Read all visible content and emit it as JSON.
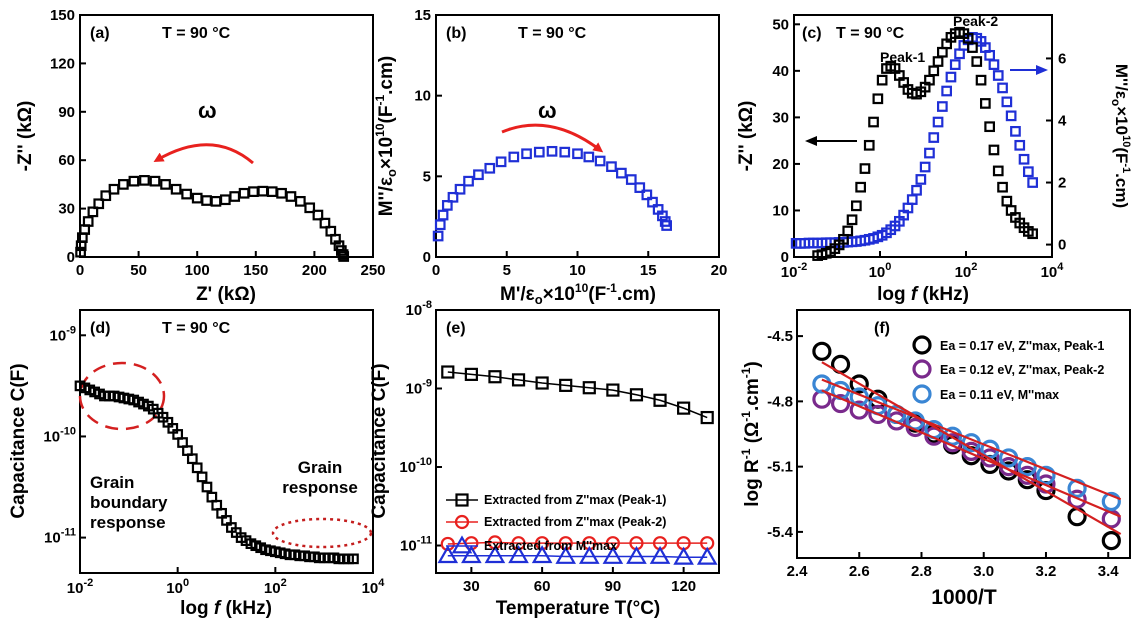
{
  "chart_data": [
    {
      "panel": "(a)",
      "type": "scatter",
      "annotation": "T = 90 °C",
      "xlabel": "Z' (kΩ)",
      "ylabel": "-Z'' (kΩ)",
      "xlim": [
        0,
        250
      ],
      "ylim": [
        0,
        150
      ],
      "xticks": [
        "0",
        "50",
        "100",
        "150",
        "200",
        "250"
      ],
      "yticks": [
        "0",
        "30",
        "60",
        "90",
        "120",
        "150"
      ],
      "arrow_label": "ω",
      "marker_color": "#000000",
      "x": [
        0.5,
        1,
        2,
        4,
        7,
        11,
        16,
        22,
        29,
        37,
        46,
        55,
        64,
        73,
        82,
        91,
        100,
        108,
        116,
        124,
        132,
        140,
        148,
        156,
        164,
        172,
        180,
        188,
        196,
        203,
        209,
        214,
        218,
        221,
        223,
        224.5,
        225
      ],
      "y": [
        3,
        7,
        12,
        17,
        22,
        28,
        33,
        38,
        42,
        45,
        47,
        47.5,
        47,
        45,
        42,
        39,
        36.5,
        35,
        34.5,
        35.5,
        37.5,
        39.5,
        40.5,
        40.8,
        40.5,
        39.5,
        37.5,
        34.5,
        30.5,
        26,
        21,
        16,
        11,
        7,
        4,
        1.5,
        0.3
      ]
    },
    {
      "panel": "(b)",
      "type": "scatter",
      "annotation": "T = 90 °C",
      "xlabel": "M'/εo×10¹⁰(F⁻¹.cm)",
      "ylabel": "M''/εo×10¹⁰(F⁻¹.cm)",
      "xlim": [
        0,
        20
      ],
      "ylim": [
        0,
        15
      ],
      "xticks": [
        "0",
        "5",
        "10",
        "15",
        "20"
      ],
      "yticks": [
        "0",
        "5",
        "10",
        "15"
      ],
      "arrow_label": "ω",
      "marker_color": "#1f2fd6",
      "x": [
        0.15,
        0.3,
        0.5,
        0.8,
        1.2,
        1.7,
        2.3,
        3,
        3.8,
        4.6,
        5.5,
        6.4,
        7.3,
        8.2,
        9.1,
        10,
        10.8,
        11.6,
        12.4,
        13.1,
        13.8,
        14.4,
        14.9,
        15.3,
        15.7,
        16,
        16.2,
        16.3
      ],
      "y": [
        1.3,
        2,
        2.6,
        3.2,
        3.7,
        4.2,
        4.7,
        5.1,
        5.5,
        5.9,
        6.2,
        6.4,
        6.5,
        6.55,
        6.5,
        6.4,
        6.2,
        5.95,
        5.6,
        5.2,
        4.8,
        4.3,
        3.85,
        3.4,
        2.95,
        2.55,
        2.2,
        1.95
      ]
    },
    {
      "panel": "(c)",
      "type": "scatter",
      "annotation": "T = 90 °C",
      "xlabel": "log f (kHz)",
      "ylabel_left": "-Z'' (kΩ)",
      "ylabel_right": "M''/εo×10¹⁰(F⁻¹.cm)",
      "xlim_log10": [
        -2,
        4
      ],
      "ylim_left": [
        0,
        52
      ],
      "ylim_right": [
        -0.4,
        7.4
      ],
      "xticks": [
        "10⁻²",
        "10⁰",
        "10²",
        "10⁴"
      ],
      "yticks_left": [
        "0",
        "10",
        "20",
        "30",
        "40",
        "50"
      ],
      "yticks_right": [
        "0",
        "2",
        "4",
        "6"
      ],
      "peak_labels": [
        "Peak-1",
        "Peak-2"
      ],
      "series": [
        {
          "name": "-Z''",
          "axis": "left",
          "color": "#000000",
          "log_x": [
            -1.45,
            -1.35,
            -1.25,
            -1.15,
            -1.05,
            -0.95,
            -0.85,
            -0.75,
            -0.65,
            -0.55,
            -0.45,
            -0.35,
            -0.25,
            -0.15,
            -0.05,
            0.05,
            0.15,
            0.25,
            0.35,
            0.45,
            0.55,
            0.65,
            0.75,
            0.85,
            0.95,
            1.05,
            1.15,
            1.25,
            1.35,
            1.45,
            1.55,
            1.65,
            1.75,
            1.85,
            1.95,
            2.05,
            2.15,
            2.25,
            2.35,
            2.45,
            2.55,
            2.65,
            2.75,
            2.85,
            2.95,
            3.05,
            3.15,
            3.25,
            3.35,
            3.45,
            3.55
          ],
          "values": [
            0.3,
            0.5,
            0.8,
            1.2,
            1.8,
            2.6,
            3.8,
            5.6,
            8,
            11,
            15,
            19,
            24,
            29,
            34,
            38,
            40.5,
            41,
            40.5,
            39,
            37.5,
            36,
            35.2,
            35,
            35.5,
            36.5,
            38,
            40,
            42,
            44,
            45.8,
            47.2,
            48,
            48.3,
            48,
            47,
            45,
            42,
            38,
            33,
            28,
            23,
            18.5,
            15,
            12,
            10,
            8.5,
            7.3,
            6.3,
            5.5,
            5
          ]
        },
        {
          "name": "M''",
          "axis": "right",
          "color": "#1f2fd6",
          "log_x": [
            -1.95,
            -1.85,
            -1.75,
            -1.65,
            -1.55,
            -1.45,
            -1.35,
            -1.25,
            -1.15,
            -1.05,
            -0.95,
            -0.85,
            -0.75,
            -0.65,
            -0.55,
            -0.45,
            -0.35,
            -0.25,
            -0.15,
            -0.05,
            0.05,
            0.15,
            0.25,
            0.35,
            0.45,
            0.55,
            0.65,
            0.75,
            0.85,
            0.95,
            1.05,
            1.15,
            1.25,
            1.35,
            1.45,
            1.55,
            1.65,
            1.75,
            1.85,
            1.95,
            2.05,
            2.15,
            2.25,
            2.35,
            2.45,
            2.55,
            2.65,
            2.75,
            2.85,
            2.95,
            3.05,
            3.15,
            3.25,
            3.35,
            3.45,
            3.55
          ],
          "values": [
            0.04,
            0.04,
            0.04,
            0.05,
            0.05,
            0.05,
            0.05,
            0.06,
            0.06,
            0.06,
            0.07,
            0.07,
            0.08,
            0.09,
            0.1,
            0.12,
            0.14,
            0.17,
            0.2,
            0.25,
            0.3,
            0.38,
            0.48,
            0.6,
            0.75,
            0.95,
            1.18,
            1.45,
            1.75,
            2.1,
            2.5,
            2.95,
            3.45,
            3.95,
            4.45,
            4.95,
            5.4,
            5.8,
            6.15,
            6.42,
            6.6,
            6.68,
            6.65,
            6.55,
            6.35,
            6.1,
            5.8,
            5.45,
            5.05,
            4.6,
            4.15,
            3.65,
            3.2,
            2.75,
            2.35,
            2
          ]
        }
      ]
    },
    {
      "panel": "(d)",
      "type": "scatter",
      "annotation": "T = 90 °C",
      "xlabel": "log f (kHz)",
      "ylabel": "Capacitance C(F)",
      "xlim_log10": [
        -2,
        4
      ],
      "ylim_log10": [
        -11.35,
        -8.75
      ],
      "xticks": [
        "10⁻²",
        "10⁰",
        "10²",
        "10⁴"
      ],
      "yticks": [
        "10⁻¹¹",
        "10⁻¹⁰",
        "10⁻⁹"
      ],
      "annotations": [
        "Grain boundary response",
        "Grain response"
      ],
      "log_x": [
        -2,
        -1.9,
        -1.8,
        -1.7,
        -1.6,
        -1.5,
        -1.4,
        -1.3,
        -1.2,
        -1.1,
        -1,
        -0.9,
        -0.8,
        -0.7,
        -0.6,
        -0.5,
        -0.4,
        -0.3,
        -0.2,
        -0.1,
        0,
        0.1,
        0.2,
        0.3,
        0.4,
        0.5,
        0.6,
        0.7,
        0.8,
        0.9,
        1,
        1.1,
        1.2,
        1.3,
        1.4,
        1.5,
        1.6,
        1.7,
        1.8,
        1.9,
        2,
        2.1,
        2.2,
        2.3,
        2.4,
        2.5,
        2.6,
        2.7,
        2.8,
        2.9,
        3,
        3.1,
        3.2,
        3.3,
        3.4,
        3.5,
        3.6
      ],
      "log_c": [
        -9.5,
        -9.52,
        -9.54,
        -9.56,
        -9.58,
        -9.6,
        -9.6,
        -9.6,
        -9.61,
        -9.62,
        -9.63,
        -9.64,
        -9.66,
        -9.68,
        -9.7,
        -9.73,
        -9.77,
        -9.81,
        -9.86,
        -9.92,
        -9.98,
        -10.06,
        -10.14,
        -10.22,
        -10.31,
        -10.4,
        -10.5,
        -10.6,
        -10.68,
        -10.76,
        -10.83,
        -10.9,
        -10.95,
        -11,
        -11.03,
        -11.06,
        -11.08,
        -11.1,
        -11.12,
        -11.13,
        -11.14,
        -11.15,
        -11.16,
        -11.17,
        -11.17,
        -11.18,
        -11.18,
        -11.19,
        -11.19,
        -11.2,
        -11.2,
        -11.2,
        -11.2,
        -11.21,
        -11.21,
        -11.21,
        -11.21
      ]
    },
    {
      "panel": "(e)",
      "type": "line",
      "xlabel": "Temperature T(°C)",
      "ylabel": "Capacitance C(F)",
      "xlim": [
        15,
        135
      ],
      "ylim_log10": [
        -11.35,
        -8
      ],
      "xticks": [
        "30",
        "60",
        "90",
        "120"
      ],
      "yticks": [
        "10⁻¹¹",
        "10⁻¹⁰",
        "10⁻⁹",
        "10⁻⁸"
      ],
      "x": [
        20,
        30,
        40,
        50,
        60,
        70,
        80,
        90,
        100,
        110,
        120,
        130
      ],
      "series": [
        {
          "name": "Extracted from Z''max (Peak-1)",
          "marker": "square",
          "color": "#000000",
          "log_c": [
            -8.79,
            -8.82,
            -8.85,
            -8.89,
            -8.93,
            -8.96,
            -8.99,
            -9.02,
            -9.08,
            -9.15,
            -9.25,
            -9.37
          ]
        },
        {
          "name": "Extracted from Z''max (Peak-2)",
          "marker": "circle",
          "color": "#e8211e",
          "log_c": [
            -10.98,
            -10.97,
            -10.96,
            -10.97,
            -10.97,
            -10.97,
            -10.97,
            -10.97,
            -10.97,
            -10.97,
            -10.97,
            -10.97
          ]
        },
        {
          "name": "Extracted from M''max",
          "marker": "triangle",
          "color": "#1f2fd6",
          "log_c": [
            -11.13,
            -11.13,
            -11.13,
            -11.13,
            -11.13,
            -11.14,
            -11.14,
            -11.14,
            -11.14,
            -11.14,
            -11.15,
            -11.15
          ]
        }
      ]
    },
    {
      "panel": "(f)",
      "type": "scatter",
      "xlabel": "1000/T",
      "ylabel": "log R⁻¹ (Ω⁻¹.cm⁻¹)",
      "xlim": [
        2.4,
        3.47
      ],
      "ylim": [
        -5.52,
        -4.38
      ],
      "xticks": [
        "2.4",
        "2.6",
        "2.8",
        "3.0",
        "3.2",
        "3.4"
      ],
      "yticks": [
        "-4.5",
        "-4.8",
        "-5.1",
        "-5.4"
      ],
      "x": [
        2.48,
        2.54,
        2.6,
        2.66,
        2.72,
        2.78,
        2.84,
        2.9,
        2.96,
        3.02,
        3.08,
        3.14,
        3.2,
        3.3,
        3.41
      ],
      "fit_color": "#d42020",
      "series": [
        {
          "name": "Ea = 0.17 eV, Z''max, Peak-1",
          "color": "#000000",
          "values": [
            -4.57,
            -4.63,
            -4.72,
            -4.79,
            -4.86,
            -4.9,
            -4.95,
            -5.0,
            -5.05,
            -5.09,
            -5.12,
            -5.16,
            -5.21,
            -5.33,
            -5.44
          ],
          "fit": [
            [
              2.48,
              -4.62
            ],
            [
              3.44,
              -5.41
            ]
          ]
        },
        {
          "name": "Ea = 0.12 eV, Z''max, Peak-2",
          "color": "#7a2a8c",
          "values": [
            -4.79,
            -4.81,
            -4.84,
            -4.86,
            -4.89,
            -4.92,
            -4.96,
            -4.99,
            -5.03,
            -5.06,
            -5.1,
            -5.14,
            -5.18,
            -5.25,
            -5.34
          ],
          "fit": [
            [
              2.48,
              -4.75
            ],
            [
              3.44,
              -5.33
            ]
          ]
        },
        {
          "name": "Ea = 0.11 eV, M''max",
          "color": "#3a86d4",
          "values": [
            -4.72,
            -4.75,
            -4.78,
            -4.82,
            -4.86,
            -4.89,
            -4.93,
            -4.96,
            -4.99,
            -5.02,
            -5.06,
            -5.1,
            -5.14,
            -5.2,
            -5.26
          ],
          "fit": [
            [
              2.48,
              -4.7
            ],
            [
              3.44,
              -5.25
            ]
          ]
        }
      ]
    }
  ]
}
